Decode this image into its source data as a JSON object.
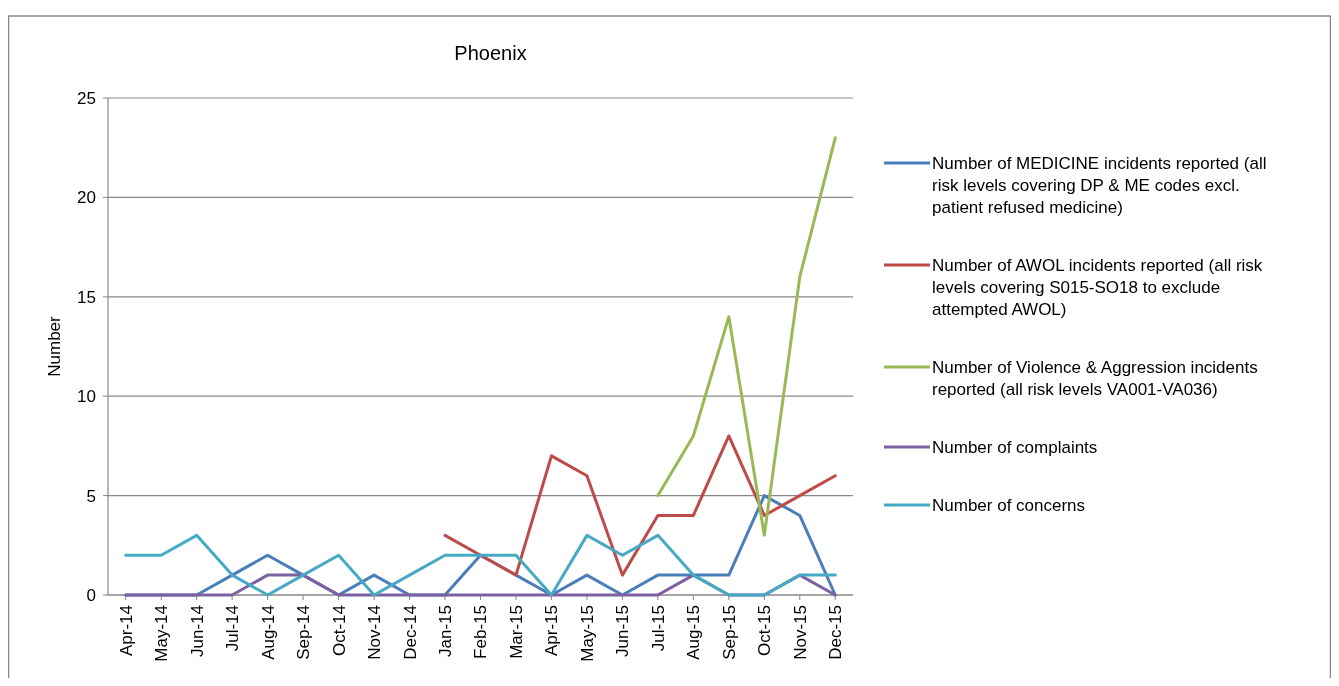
{
  "chart_data": {
    "type": "line",
    "title": "Phoenix",
    "ylabel": "Number",
    "categories": [
      "Apr-14",
      "May-14",
      "Jun-14",
      "Jul-14",
      "Aug-14",
      "Sep-14",
      "Oct-14",
      "Nov-14",
      "Dec-14",
      "Jan-15",
      "Feb-15",
      "Mar-15",
      "Apr-15",
      "May-15",
      "Jun-15",
      "Jul-15",
      "Aug-15",
      "Sep-15",
      "Oct-15",
      "Nov-15",
      "Dec-15"
    ],
    "series": [
      {
        "name": "Number of MEDICINE incidents reported (all risk levels covering DP & ME codes excl. patient refused medicine)",
        "color": "#4a7ebb",
        "values": [
          0,
          0,
          0,
          1,
          2,
          1,
          0,
          1,
          0,
          0,
          2,
          1,
          0,
          1,
          0,
          1,
          1,
          1,
          5,
          4,
          0
        ]
      },
      {
        "name": "Number of AWOL incidents reported (all risk levels covering S015-SO18 to exclude attempted AWOL)",
        "color": "#be4b48",
        "values": [
          null,
          null,
          null,
          null,
          null,
          null,
          null,
          null,
          null,
          3,
          2,
          1,
          7,
          6,
          1,
          4,
          4,
          8,
          4,
          5,
          6
        ]
      },
      {
        "name": "Number of Violence & Aggression incidents reported (all risk levels VA001-VA036)",
        "color": "#98b954",
        "values": [
          null,
          null,
          null,
          null,
          null,
          null,
          null,
          null,
          null,
          null,
          null,
          null,
          null,
          null,
          null,
          5,
          8,
          14,
          3,
          16,
          23
        ]
      },
      {
        "name": "Number of complaints",
        "color": "#7d60a0",
        "values": [
          0,
          0,
          0,
          0,
          1,
          1,
          0,
          0,
          0,
          0,
          0,
          0,
          0,
          0,
          0,
          0,
          1,
          0,
          0,
          1,
          0
        ]
      },
      {
        "name": "Number of concerns",
        "color": "#46aac5",
        "values": [
          2,
          2,
          3,
          1,
          0,
          1,
          2,
          0,
          1,
          2,
          2,
          2,
          0,
          3,
          2,
          3,
          1,
          0,
          0,
          1,
          1
        ]
      }
    ],
    "ylim": [
      0,
      25
    ],
    "yticks": [
      0,
      5,
      10,
      15,
      20,
      25
    ],
    "grid": "y",
    "legend": "right",
    "marker": "none",
    "line_style": "solid"
  }
}
